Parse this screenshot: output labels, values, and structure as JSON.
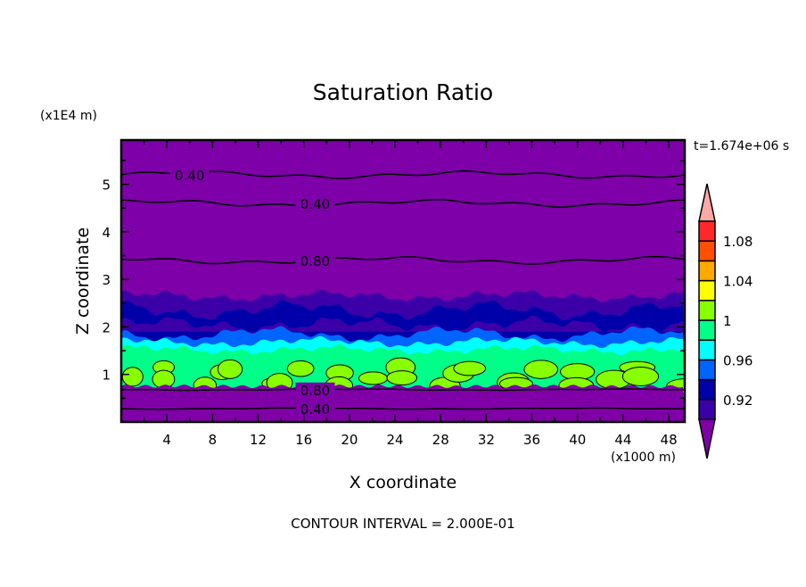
{
  "chart_data": {
    "type": "heatmap",
    "subtype": "filled-contour",
    "title": "Saturation Ratio",
    "xlabel": "X coordinate",
    "ylabel": "Z coordinate",
    "x_unit": "(x1000 m)",
    "y_unit": "(x1E4 m)",
    "time_label": "t=1.674e+06 s",
    "footer": "CONTOUR INTERVAL = 2.000E-01",
    "xlim": [
      0,
      49.4
    ],
    "ylim": [
      0,
      5.93
    ],
    "x_ticks": [
      "4",
      "8",
      "12",
      "16",
      "20",
      "24",
      "28",
      "32",
      "36",
      "40",
      "44",
      "48"
    ],
    "y_ticks": [
      "1",
      "2",
      "3",
      "4",
      "5"
    ],
    "background_color": "#7d00a8",
    "colorbar": {
      "levels": [
        0.9,
        0.92,
        0.94,
        0.96,
        0.98,
        1.0,
        1.02,
        1.04,
        1.06,
        1.08,
        1.1
      ],
      "colors": [
        "#3c00a8",
        "#0000a8",
        "#0064ff",
        "#00ffff",
        "#00ff88",
        "#88ff00",
        "#ffff00",
        "#ffa800",
        "#ff5000",
        "#ff2828"
      ],
      "under_color": "#8000a8",
      "over_color": "#ffa8a8",
      "tick_labels": [
        {
          "value": 1.08,
          "text": "1.08"
        },
        {
          "value": 1.04,
          "text": "1.04"
        },
        {
          "value": 1.0,
          "text": "1"
        },
        {
          "value": 0.96,
          "text": "0.96"
        },
        {
          "value": 0.92,
          "text": "0.92"
        }
      ]
    },
    "contour_lines": [
      {
        "level": 0.4,
        "label": "0.40",
        "z": 5.2,
        "label_x": 6
      },
      {
        "level": 0.4,
        "label": "0.40",
        "z": 4.6,
        "label_x": 17
      },
      {
        "level": 0.8,
        "label": "0.80",
        "z": 3.4,
        "label_x": 17
      },
      {
        "level": 0.8,
        "label": "0.80",
        "z": 0.68,
        "label_x": 17
      },
      {
        "level": 0.4,
        "label": "0.40",
        "z": 0.28,
        "label_x": 17
      }
    ]
  }
}
